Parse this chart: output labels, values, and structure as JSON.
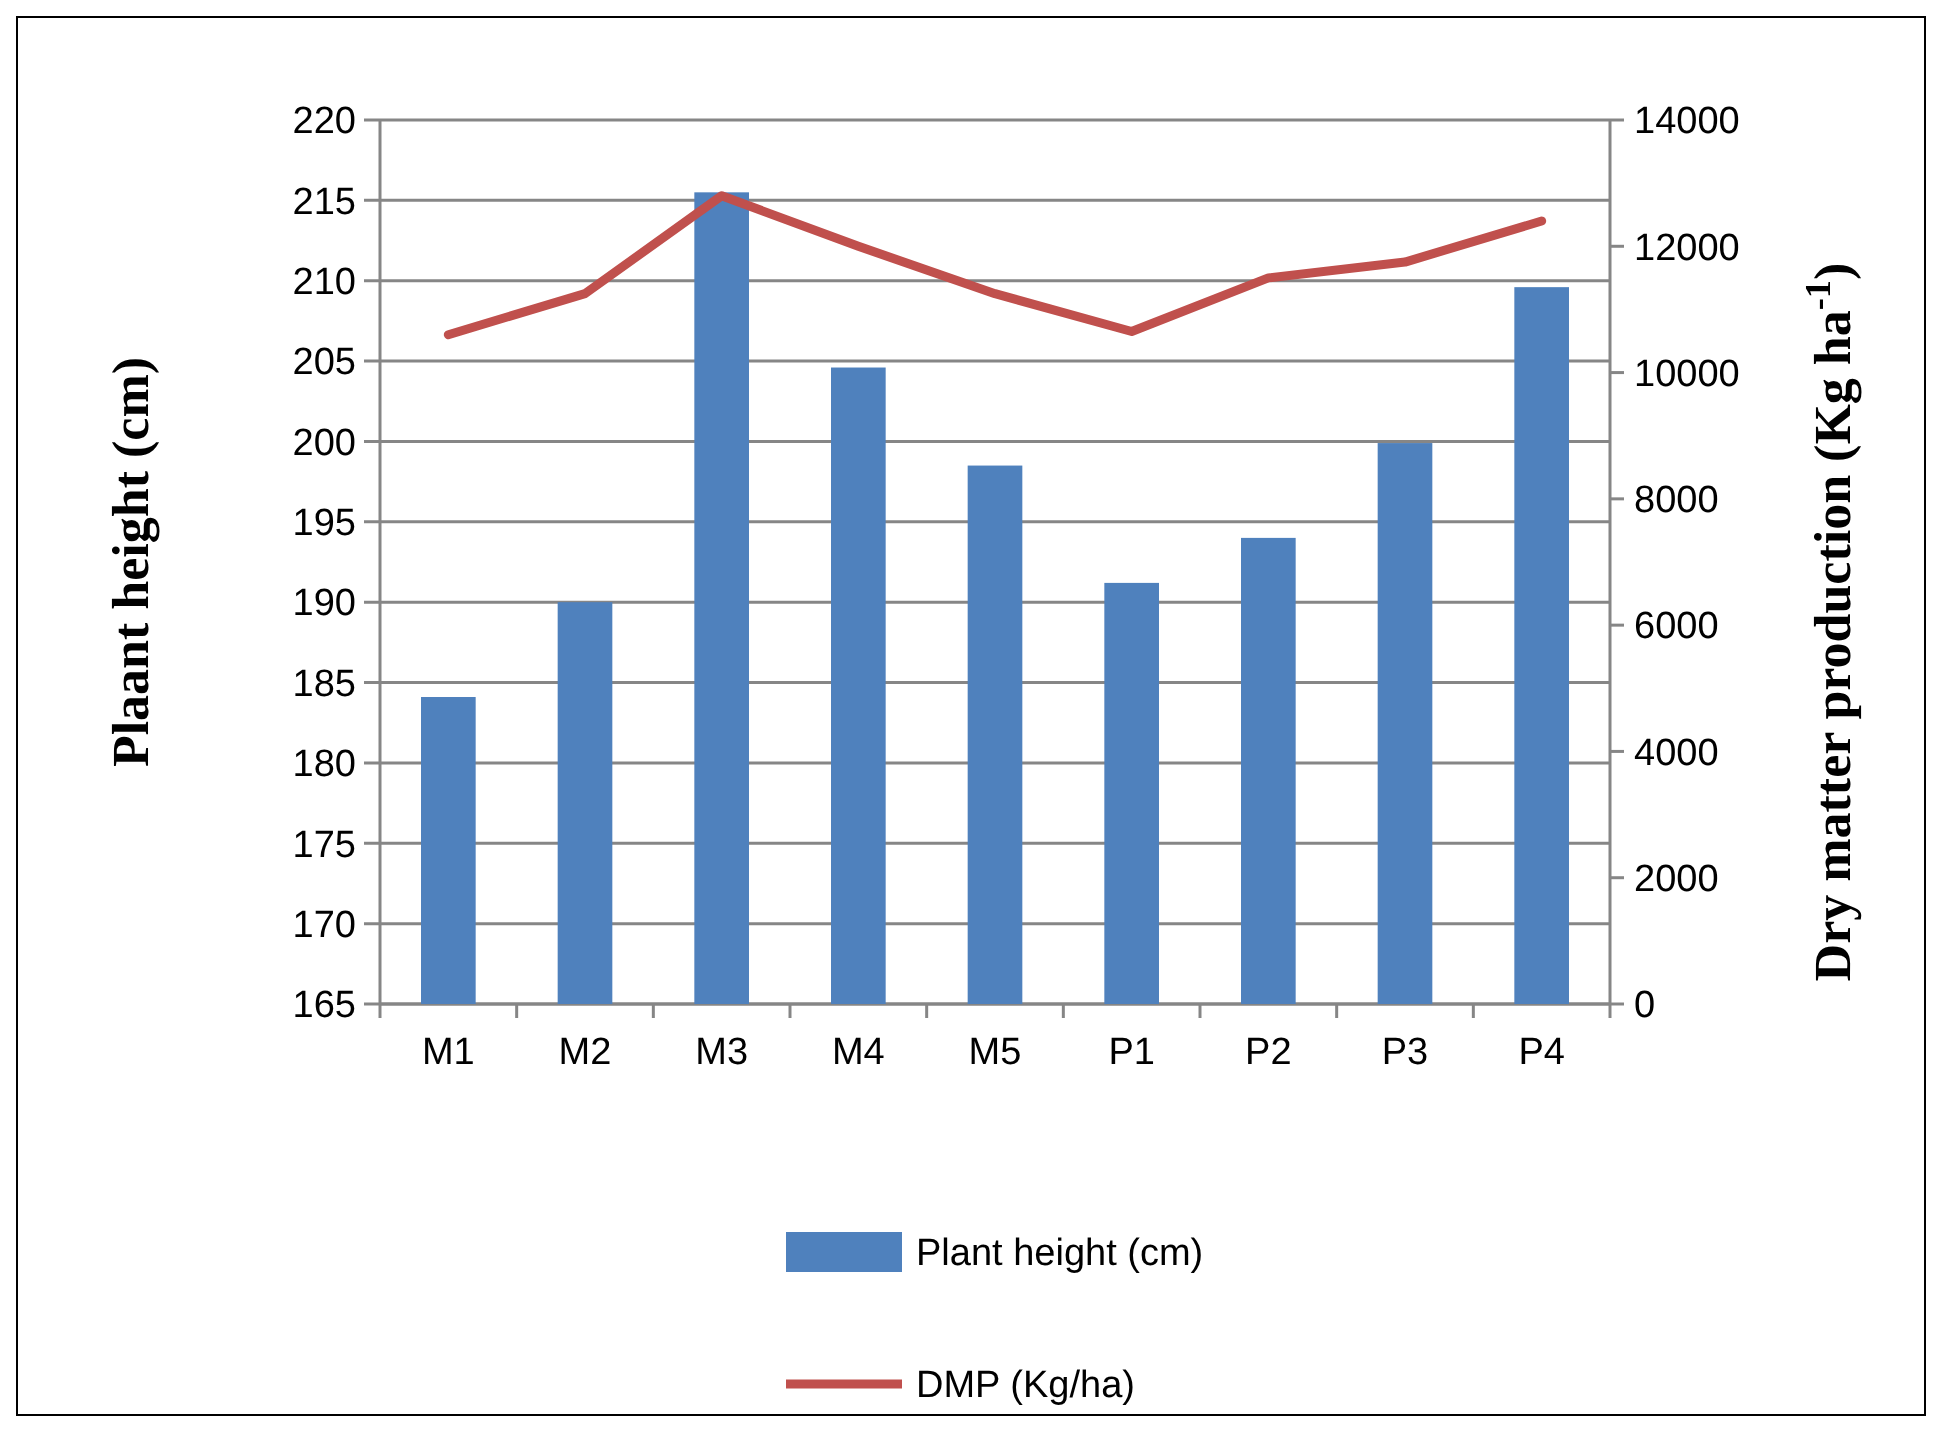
{
  "chart_data": {
    "type": "bar",
    "categories": [
      "M1",
      "M2",
      "M3",
      "M4",
      "M5",
      "P1",
      "P2",
      "P3",
      "P4"
    ],
    "ylabel": "Plaant height (cm)",
    "y2label": "Dry matter production (Kg ha$^{-1}$)",
    "series": [
      {
        "name": "Plant height (cm)",
        "color": "#4f81bd",
        "values": [
          184.1,
          190.0,
          215.5,
          204.6,
          198.5,
          191.2,
          194.0,
          199.9,
          209.6
        ]
      },
      {
        "name": "DMP (Kg/ha)",
        "type": "line",
        "axis": "y2",
        "color": "#c0504d",
        "values": [
          10600,
          11250,
          12800,
          12000,
          11250,
          10650,
          11500,
          11750,
          12400
        ]
      }
    ],
    "ylim": [
      165,
      220
    ],
    "yticks": [
      165,
      170,
      175,
      180,
      185,
      190,
      195,
      200,
      205,
      210,
      215,
      220
    ],
    "y2lim": [
      0,
      14000
    ],
    "y2ticks": [
      0,
      2000,
      4000,
      6000,
      8000,
      10000,
      12000,
      14000
    ],
    "grid": "y",
    "legend": "bottom",
    "marker": "none"
  }
}
